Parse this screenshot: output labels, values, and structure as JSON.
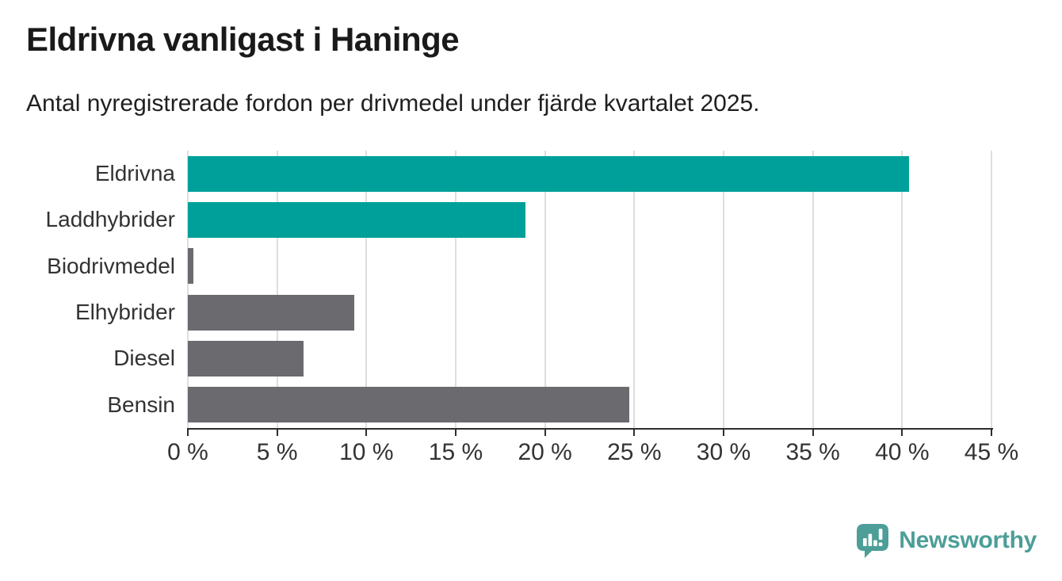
{
  "header": {
    "title": "Eldrivna vanligast i Haninge",
    "subtitle": "Antal nyregistrerade fordon per drivmedel under fjärde kvartalet 2025."
  },
  "chart_data": {
    "type": "bar",
    "orientation": "horizontal",
    "title": "Eldrivna vanligast i Haninge",
    "subtitle": "Antal nyregistrerade fordon per drivmedel under fjärde kvartalet 2025.",
    "categories": [
      "Eldrivna",
      "Laddhybrider",
      "Biodrivmedel",
      "Elhybrider",
      "Diesel",
      "Bensin"
    ],
    "values": [
      40.4,
      18.9,
      0.3,
      9.3,
      6.5,
      24.7
    ],
    "bar_colors": [
      "#00a09a",
      "#00a09a",
      "#6a6a6f",
      "#6a6a6f",
      "#6a6a6f",
      "#6a6a6f"
    ],
    "xlabel": "",
    "ylabel": "",
    "xlim": [
      0,
      45
    ],
    "x_ticks": [
      0,
      5,
      10,
      15,
      20,
      25,
      30,
      35,
      40,
      45
    ],
    "x_tick_labels": [
      "0 %",
      "5 %",
      "10 %",
      "15 %",
      "20 %",
      "25 %",
      "30 %",
      "35 %",
      "40 %",
      "45 %"
    ],
    "unit": "percent",
    "grid": "vertical-only",
    "legend": "none"
  },
  "footer": {
    "brand": "Newsworthy"
  },
  "colors": {
    "accent_teal": "#00a09a",
    "neutral_gray": "#6a6a6f",
    "brand_teal": "#4d9e98",
    "axis": "#2d2d2d",
    "gridline": "#dedede",
    "title_text": "#1a1a1a",
    "label_text": "#333333",
    "background": "#ffffff"
  }
}
